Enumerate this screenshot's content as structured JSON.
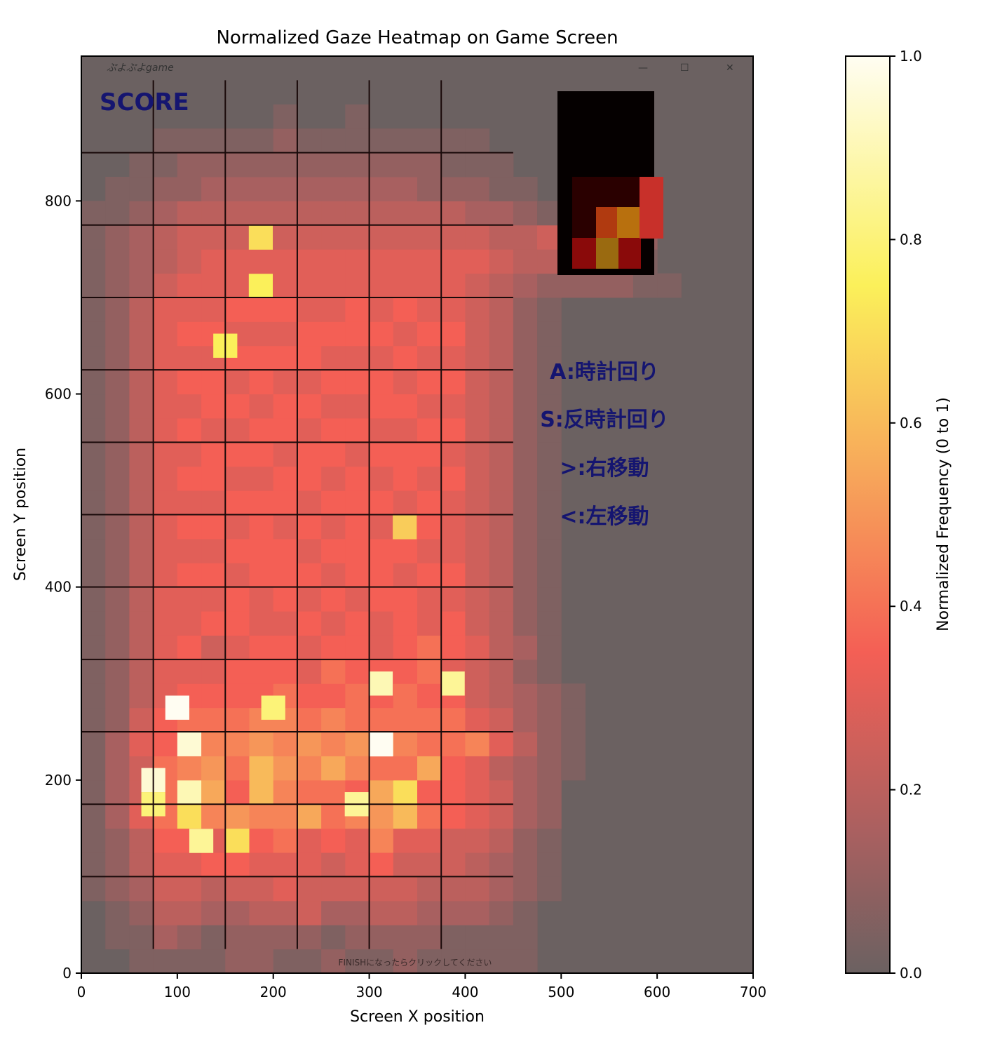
{
  "chart_data": {
    "type": "heatmap",
    "title": "Normalized Gaze Heatmap on Game Screen",
    "xlabel": "Screen X position",
    "ylabel": "Screen Y position",
    "xlim": [
      0,
      700
    ],
    "ylim": [
      0,
      950
    ],
    "xticks": [
      "0",
      "100",
      "200",
      "300",
      "400",
      "500",
      "600",
      "700"
    ],
    "yticks": [
      "0",
      "200",
      "400",
      "600",
      "800"
    ],
    "colorbar": {
      "label": "Normalized Frequency (0 to 1)",
      "ticks": [
        "0.0",
        "0.2",
        "0.4",
        "0.6",
        "0.8",
        "1.0"
      ],
      "colormap": "hot",
      "range": [
        0,
        1
      ]
    },
    "cell_width": 25,
    "cell_height": 25,
    "grid_origin_x": 0,
    "grid_origin_y": 0,
    "rows_from_bottom": [
      "000000000000000000000000000",
      "000000000000000000000000000",
      "000000000000000000000000000",
      "000000000000000000000000000",
      "000000000000000000000000000",
      "000000000000000000000000000",
      "000000000000000000000000000",
      "000000000000000000000000000",
      "000000000000000000000000000",
      "000000000000000000000000000",
      "000000000000000000000000000",
      "000000000000000000000000000",
      "000000000000000000000000000",
      "000000000000000000000000000",
      "000000000000000000000000000",
      "000000000000000000000000000",
      "000000000000000000000000000",
      "000000000000000000000000000",
      "000000000000000000000000000",
      "000000000000000000000000000",
      "000000000000000000000000000",
      "000000000000000000000000000",
      "000000000000000000000000000",
      "000000000000000000000000000",
      "000000000000000000000000000",
      "000000000000000000000000000",
      "000000000000000000000000000",
      "000000000000000000000000000",
      "000000000000000000000000000",
      "000000000000000000000000000",
      "000000000000000000000000000",
      "000000000000000000000000000",
      "000000000000000000000000000",
      "000000000000000000000000000",
      "000000000000000000000000000",
      "000000000000000000000000000",
      "000000000000000000000000000",
      "000000000000000000000000000"
    ],
    "grid_values": [
      [
        0.0,
        0.0,
        0.05,
        0.05,
        0.05,
        0.05,
        0.1,
        0.1,
        0.05,
        0.05,
        0.1,
        0.05,
        0.05,
        0.1,
        0.05,
        0.05,
        0.05,
        0.05,
        0.05,
        0.0,
        0.0,
        0.0,
        0.0,
        0.0,
        0.0,
        0.0,
        0.0
      ],
      [
        0.0,
        0.05,
        0.05,
        0.15,
        0.1,
        0.05,
        0.1,
        0.1,
        0.1,
        0.1,
        0.05,
        0.1,
        0.1,
        0.1,
        0.1,
        0.05,
        0.05,
        0.05,
        0.05,
        0.0,
        0.0,
        0.0,
        0.0,
        0.0,
        0.0,
        0.0,
        0.0
      ],
      [
        0.0,
        0.05,
        0.1,
        0.2,
        0.2,
        0.15,
        0.15,
        0.2,
        0.2,
        0.25,
        0.15,
        0.15,
        0.2,
        0.2,
        0.15,
        0.15,
        0.15,
        0.1,
        0.05,
        0.0,
        0.0,
        0.0,
        0.0,
        0.0,
        0.0,
        0.0,
        0.0
      ],
      [
        0.05,
        0.1,
        0.15,
        0.25,
        0.25,
        0.2,
        0.25,
        0.25,
        0.3,
        0.25,
        0.25,
        0.25,
        0.25,
        0.25,
        0.2,
        0.2,
        0.2,
        0.15,
        0.1,
        0.05,
        0.0,
        0.0,
        0.0,
        0.0,
        0.0,
        0.0,
        0.0
      ],
      [
        0.05,
        0.1,
        0.2,
        0.3,
        0.3,
        0.35,
        0.35,
        0.3,
        0.3,
        0.3,
        0.25,
        0.3,
        0.35,
        0.25,
        0.25,
        0.25,
        0.2,
        0.15,
        0.1,
        0.05,
        0.0,
        0.0,
        0.0,
        0.0,
        0.0,
        0.0,
        0.0
      ],
      [
        0.05,
        0.1,
        0.2,
        0.35,
        0.35,
        0.3,
        0.7,
        0.35,
        0.4,
        0.3,
        0.35,
        0.3,
        0.45,
        0.3,
        0.3,
        0.25,
        0.25,
        0.2,
        0.1,
        0.05,
        0.0,
        0.0,
        0.0,
        0.0,
        0.0,
        0.0,
        0.0
      ],
      [
        0.05,
        0.15,
        0.3,
        0.4,
        0.7,
        0.45,
        0.5,
        0.45,
        0.45,
        0.55,
        0.4,
        0.45,
        0.5,
        0.6,
        0.4,
        0.35,
        0.3,
        0.25,
        0.15,
        0.1,
        0.0,
        0.0,
        0.0,
        0.0,
        0.0,
        0.0,
        0.0
      ],
      [
        0.05,
        0.15,
        0.25,
        0.4,
        0.9,
        0.55,
        0.35,
        0.6,
        0.45,
        0.4,
        0.4,
        0.35,
        0.55,
        0.7,
        0.35,
        0.35,
        0.3,
        0.25,
        0.15,
        0.1,
        0.0,
        0.0,
        0.0,
        0.0,
        0.0,
        0.0,
        0.0
      ],
      [
        0.05,
        0.15,
        0.25,
        0.4,
        0.45,
        0.5,
        0.4,
        0.6,
        0.5,
        0.45,
        0.55,
        0.45,
        0.4,
        0.4,
        0.55,
        0.35,
        0.3,
        0.2,
        0.15,
        0.1,
        0.05,
        0.0,
        0.0,
        0.0,
        0.0,
        0.0,
        0.0
      ],
      [
        0.05,
        0.15,
        0.3,
        0.35,
        0.95,
        0.45,
        0.45,
        0.5,
        0.45,
        0.5,
        0.45,
        0.5,
        0.95,
        0.45,
        0.4,
        0.4,
        0.45,
        0.3,
        0.2,
        0.1,
        0.05,
        0.0,
        0.0,
        0.0,
        0.0,
        0.0,
        0.0
      ],
      [
        0.05,
        0.1,
        0.25,
        0.35,
        0.4,
        0.4,
        0.4,
        0.45,
        0.45,
        0.4,
        0.45,
        0.4,
        0.4,
        0.4,
        0.4,
        0.4,
        0.3,
        0.25,
        0.15,
        0.1,
        0.05,
        0.0,
        0.0,
        0.0,
        0.0,
        0.0,
        0.0
      ],
      [
        0.05,
        0.1,
        0.2,
        0.3,
        0.35,
        0.35,
        0.35,
        0.35,
        0.4,
        0.35,
        0.35,
        0.4,
        0.35,
        0.4,
        0.35,
        0.35,
        0.25,
        0.2,
        0.15,
        0.1,
        0.05,
        0.0,
        0.0,
        0.0,
        0.0,
        0.0,
        0.0
      ],
      [
        0.05,
        0.1,
        0.2,
        0.3,
        0.3,
        0.3,
        0.35,
        0.35,
        0.35,
        0.3,
        0.4,
        0.35,
        0.35,
        0.35,
        0.4,
        0.3,
        0.25,
        0.2,
        0.1,
        0.05,
        0.0,
        0.0,
        0.0,
        0.0,
        0.0,
        0.0,
        0.0
      ],
      [
        0.05,
        0.1,
        0.2,
        0.3,
        0.35,
        0.25,
        0.3,
        0.35,
        0.35,
        0.3,
        0.35,
        0.35,
        0.3,
        0.35,
        0.4,
        0.35,
        0.3,
        0.2,
        0.15,
        0.05,
        0.0,
        0.0,
        0.0,
        0.0,
        0.0,
        0.0,
        0.0
      ],
      [
        0.05,
        0.1,
        0.2,
        0.3,
        0.3,
        0.35,
        0.35,
        0.3,
        0.3,
        0.35,
        0.3,
        0.35,
        0.3,
        0.35,
        0.3,
        0.35,
        0.25,
        0.2,
        0.1,
        0.05,
        0.0,
        0.0,
        0.0,
        0.0,
        0.0,
        0.0,
        0.0
      ],
      [
        0.05,
        0.1,
        0.2,
        0.3,
        0.3,
        0.3,
        0.35,
        0.3,
        0.35,
        0.3,
        0.35,
        0.3,
        0.35,
        0.35,
        0.3,
        0.3,
        0.25,
        0.2,
        0.1,
        0.05,
        0.0,
        0.0,
        0.0,
        0.0,
        0.0,
        0.0,
        0.0
      ],
      [
        0.05,
        0.1,
        0.2,
        0.3,
        0.35,
        0.35,
        0.3,
        0.35,
        0.35,
        0.35,
        0.3,
        0.35,
        0.35,
        0.3,
        0.35,
        0.35,
        0.25,
        0.2,
        0.1,
        0.05,
        0.0,
        0.0,
        0.0,
        0.0,
        0.0,
        0.0,
        0.0
      ],
      [
        0.05,
        0.1,
        0.2,
        0.3,
        0.3,
        0.3,
        0.35,
        0.35,
        0.35,
        0.3,
        0.35,
        0.35,
        0.35,
        0.35,
        0.3,
        0.3,
        0.25,
        0.2,
        0.1,
        0.05,
        0.0,
        0.0,
        0.0,
        0.0,
        0.0,
        0.0,
        0.0
      ],
      [
        0.05,
        0.1,
        0.2,
        0.3,
        0.35,
        0.35,
        0.3,
        0.35,
        0.3,
        0.35,
        0.3,
        0.35,
        0.3,
        0.35,
        0.35,
        0.3,
        0.25,
        0.2,
        0.1,
        0.05,
        0.0,
        0.0,
        0.0,
        0.0,
        0.0,
        0.0,
        0.0
      ],
      [
        0.05,
        0.1,
        0.2,
        0.3,
        0.3,
        0.3,
        0.35,
        0.35,
        0.35,
        0.3,
        0.35,
        0.35,
        0.35,
        0.3,
        0.35,
        0.3,
        0.25,
        0.2,
        0.1,
        0.05,
        0.0,
        0.0,
        0.0,
        0.0,
        0.0,
        0.0,
        0.0
      ],
      [
        0.05,
        0.1,
        0.2,
        0.3,
        0.35,
        0.35,
        0.3,
        0.3,
        0.35,
        0.35,
        0.3,
        0.35,
        0.3,
        0.35,
        0.3,
        0.35,
        0.25,
        0.2,
        0.1,
        0.05,
        0.0,
        0.0,
        0.0,
        0.0,
        0.0,
        0.0,
        0.0
      ],
      [
        0.05,
        0.1,
        0.2,
        0.3,
        0.3,
        0.35,
        0.35,
        0.35,
        0.3,
        0.35,
        0.35,
        0.3,
        0.35,
        0.35,
        0.35,
        0.3,
        0.25,
        0.2,
        0.1,
        0.05,
        0.0,
        0.0,
        0.0,
        0.0,
        0.0,
        0.0,
        0.0
      ],
      [
        0.05,
        0.1,
        0.2,
        0.3,
        0.35,
        0.3,
        0.3,
        0.35,
        0.35,
        0.3,
        0.35,
        0.35,
        0.3,
        0.3,
        0.35,
        0.35,
        0.25,
        0.2,
        0.1,
        0.05,
        0.0,
        0.0,
        0.0,
        0.0,
        0.0,
        0.0,
        0.0
      ],
      [
        0.05,
        0.1,
        0.2,
        0.3,
        0.3,
        0.35,
        0.35,
        0.3,
        0.35,
        0.35,
        0.3,
        0.3,
        0.35,
        0.35,
        0.3,
        0.3,
        0.25,
        0.2,
        0.1,
        0.05,
        0.0,
        0.0,
        0.0,
        0.0,
        0.0,
        0.0,
        0.0
      ],
      [
        0.05,
        0.1,
        0.2,
        0.3,
        0.35,
        0.35,
        0.3,
        0.35,
        0.3,
        0.3,
        0.35,
        0.35,
        0.35,
        0.3,
        0.35,
        0.35,
        0.25,
        0.2,
        0.1,
        0.05,
        0.0,
        0.0,
        0.0,
        0.0,
        0.0,
        0.0,
        0.0
      ],
      [
        0.05,
        0.1,
        0.2,
        0.3,
        0.3,
        0.3,
        0.35,
        0.35,
        0.35,
        0.35,
        0.3,
        0.3,
        0.3,
        0.35,
        0.3,
        0.3,
        0.25,
        0.2,
        0.1,
        0.05,
        0.0,
        0.0,
        0.0,
        0.0,
        0.0,
        0.0,
        0.0
      ],
      [
        0.05,
        0.1,
        0.2,
        0.3,
        0.35,
        0.35,
        0.3,
        0.3,
        0.3,
        0.35,
        0.35,
        0.35,
        0.35,
        0.3,
        0.35,
        0.35,
        0.25,
        0.2,
        0.1,
        0.05,
        0.0,
        0.0,
        0.0,
        0.0,
        0.0,
        0.0,
        0.0
      ],
      [
        0.05,
        0.1,
        0.2,
        0.3,
        0.3,
        0.3,
        0.35,
        0.35,
        0.35,
        0.3,
        0.3,
        0.35,
        0.3,
        0.35,
        0.3,
        0.3,
        0.25,
        0.2,
        0.1,
        0.05,
        0.0,
        0.0,
        0.0,
        0.0,
        0.0,
        0.0,
        0.0
      ],
      [
        0.05,
        0.1,
        0.15,
        0.25,
        0.3,
        0.3,
        0.3,
        0.3,
        0.3,
        0.3,
        0.3,
        0.3,
        0.3,
        0.3,
        0.3,
        0.3,
        0.25,
        0.2,
        0.15,
        0.1,
        0.1,
        0.1,
        0.1,
        0.05,
        0.05,
        0.0,
        0.0
      ],
      [
        0.05,
        0.1,
        0.15,
        0.2,
        0.25,
        0.3,
        0.3,
        0.3,
        0.3,
        0.3,
        0.3,
        0.3,
        0.3,
        0.3,
        0.3,
        0.3,
        0.3,
        0.25,
        0.2,
        0.2,
        0.25,
        0.25,
        0.2,
        0.05,
        0.0,
        0.0,
        0.0
      ],
      [
        0.05,
        0.1,
        0.15,
        0.2,
        0.25,
        0.25,
        0.25,
        0.25,
        0.25,
        0.25,
        0.25,
        0.25,
        0.25,
        0.25,
        0.25,
        0.25,
        0.25,
        0.2,
        0.2,
        0.25,
        0.3,
        0.3,
        0.5,
        0.1,
        0.0,
        0.0,
        0.0
      ],
      [
        0.05,
        0.05,
        0.1,
        0.15,
        0.2,
        0.2,
        0.2,
        0.2,
        0.2,
        0.2,
        0.2,
        0.2,
        0.2,
        0.2,
        0.2,
        0.2,
        0.15,
        0.15,
        0.1,
        0.05,
        0.0,
        0.0,
        0.0,
        0.0,
        0.0,
        0.0,
        0.0
      ],
      [
        0.0,
        0.05,
        0.05,
        0.1,
        0.1,
        0.15,
        0.15,
        0.15,
        0.15,
        0.15,
        0.15,
        0.15,
        0.15,
        0.15,
        0.1,
        0.1,
        0.1,
        0.05,
        0.05,
        0.0,
        0.0,
        0.0,
        0.0,
        0.0,
        0.0,
        0.0,
        0.0
      ],
      [
        0.0,
        0.0,
        0.05,
        0.05,
        0.1,
        0.1,
        0.1,
        0.1,
        0.1,
        0.1,
        0.1,
        0.1,
        0.1,
        0.1,
        0.1,
        0.05,
        0.05,
        0.05,
        0.0,
        0.0,
        0.0,
        0.0,
        0.0,
        0.0,
        0.0,
        0.0,
        0.0
      ],
      [
        0.0,
        0.0,
        0.0,
        0.05,
        0.05,
        0.05,
        0.05,
        0.05,
        0.1,
        0.05,
        0.05,
        0.05,
        0.05,
        0.05,
        0.05,
        0.05,
        0.05,
        0.0,
        0.0,
        0.0,
        0.0,
        0.0,
        0.0,
        0.0,
        0.0,
        0.0,
        0.0
      ],
      [
        0.0,
        0.0,
        0.0,
        0.0,
        0.0,
        0.0,
        0.0,
        0.0,
        0.05,
        0.0,
        0.0,
        0.05,
        0.0,
        0.0,
        0.0,
        0.0,
        0.0,
        0.0,
        0.0,
        0.0,
        0.0,
        0.0,
        0.0,
        0.0,
        0.0,
        0.0,
        0.0
      ],
      [
        0.0,
        0.0,
        0.0,
        0.0,
        0.0,
        0.0,
        0.0,
        0.0,
        0.0,
        0.0,
        0.0,
        0.0,
        0.0,
        0.0,
        0.0,
        0.0,
        0.0,
        0.0,
        0.0,
        0.0,
        0.0,
        0.0,
        0.0,
        0.0,
        0.0,
        0.0,
        0.0
      ],
      [
        0.0,
        0.0,
        0.0,
        0.0,
        0.0,
        0.0,
        0.0,
        0.0,
        0.0,
        0.0,
        0.0,
        0.0,
        0.0,
        0.0,
        0.0,
        0.0,
        0.0,
        0.0,
        0.0,
        0.0,
        0.0,
        0.0,
        0.0,
        0.0,
        0.0,
        0.0,
        0.0
      ]
    ],
    "hot_cells": [
      {
        "x": 100,
        "y": 275,
        "value": 1.0
      },
      {
        "x": 312,
        "y": 237,
        "value": 1.0
      },
      {
        "x": 75,
        "y": 200,
        "value": 0.95
      },
      {
        "x": 312,
        "y": 300,
        "value": 0.9
      },
      {
        "x": 387,
        "y": 300,
        "value": 0.85
      },
      {
        "x": 200,
        "y": 275,
        "value": 0.8
      },
      {
        "x": 125,
        "y": 137,
        "value": 0.85
      },
      {
        "x": 287,
        "y": 175,
        "value": 0.85
      },
      {
        "x": 75,
        "y": 175,
        "value": 0.8
      },
      {
        "x": 150,
        "y": 650,
        "value": 0.75
      },
      {
        "x": 187,
        "y": 712,
        "value": 0.75
      },
      {
        "x": 187,
        "y": 762,
        "value": 0.7
      },
      {
        "x": 337,
        "y": 462,
        "value": 0.65
      },
      {
        "x": 550,
        "y": 787,
        "value": 0.55
      },
      {
        "x": 537,
        "y": 762,
        "value": 0.5
      }
    ]
  },
  "game_overlay": {
    "window_title": "ぷよぷよgame",
    "score_label": "SCORE",
    "controls": [
      "A:時計回り",
      "S:反時計回り",
      ">:右移動",
      "<:左移動"
    ],
    "footer_text": "FINISHになったらクリックしてください",
    "window_buttons": [
      "—",
      "☐",
      "✕"
    ]
  }
}
